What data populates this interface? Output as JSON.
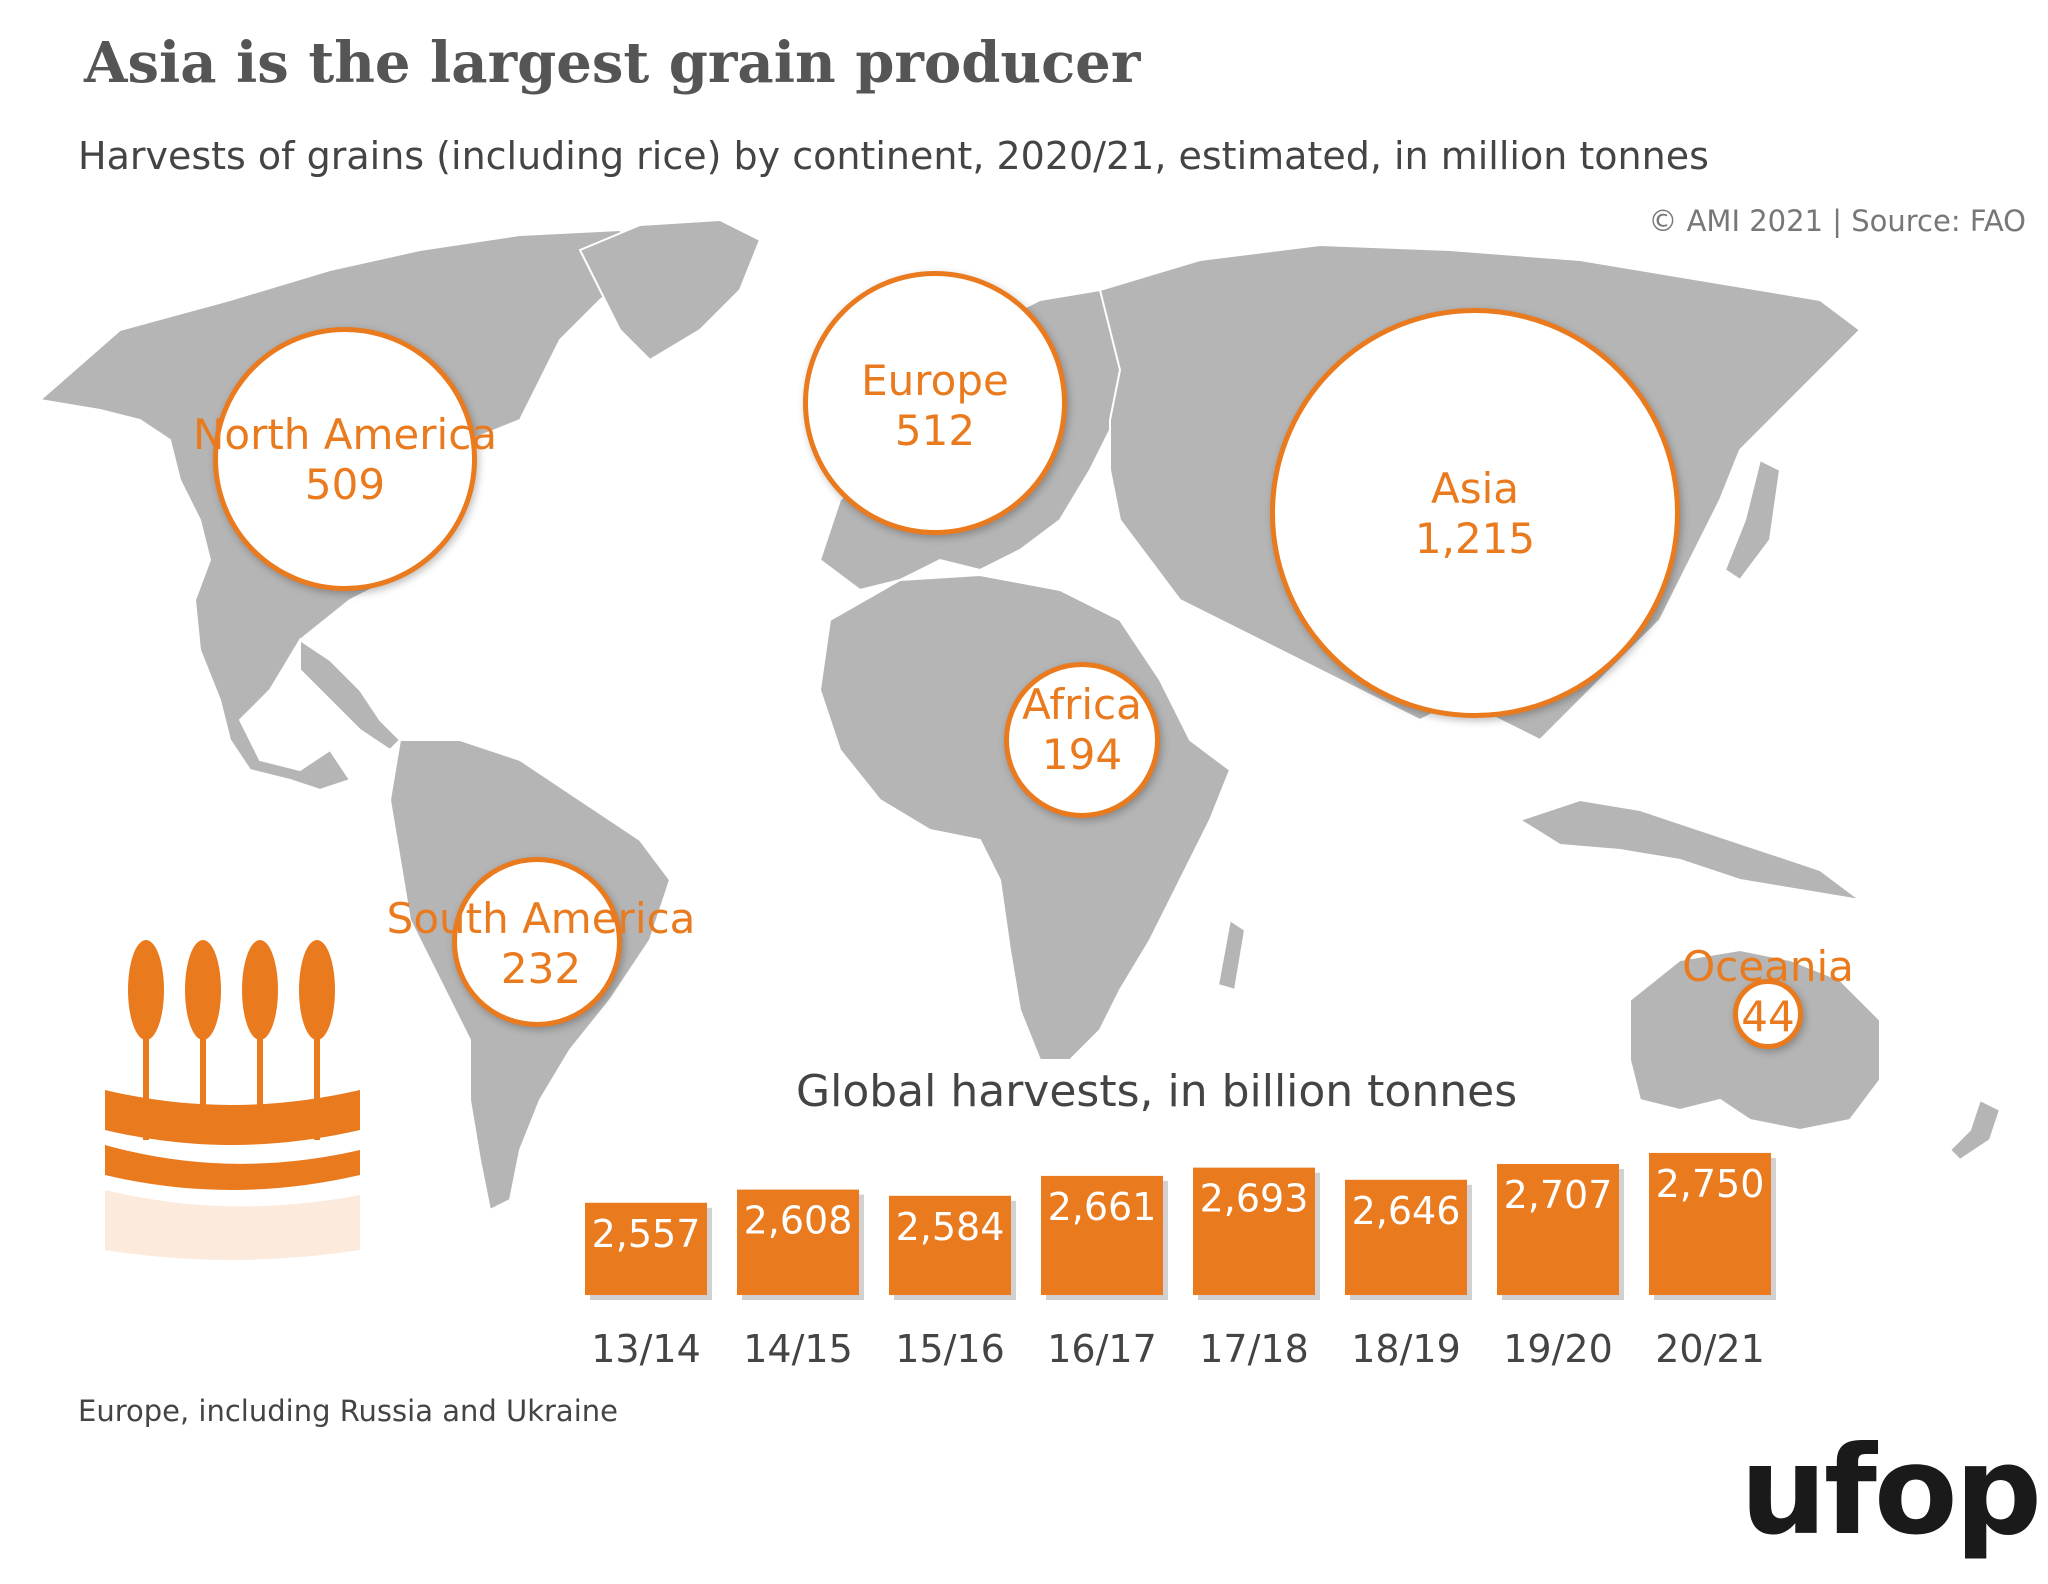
{
  "title": "Asia is the largest grain producer",
  "subtitle": "Harvests of grains (including rice) by continent, 2020/21, estimated, in million tonnes",
  "credit": "© AMI 2021 | Source: FAO",
  "footnote": "Europe, including Russia and Ukraine",
  "logo_text": "ufop",
  "colors": {
    "accent": "#ea7a1e",
    "land": "#b5b5b5",
    "text": "#444444"
  },
  "icons": [
    "wheat-icon",
    "ufop-logo"
  ],
  "chart_data": [
    {
      "type": "bubble-map",
      "title": "Harvests of grains (including rice) by continent, 2020/21, estimated, in million tonnes",
      "unit": "million tonnes",
      "regions": [
        {
          "name": "North America",
          "display": "509",
          "value": 509
        },
        {
          "name": "Europe",
          "display": "512",
          "value": 512
        },
        {
          "name": "Asia",
          "display": "1,215",
          "value": 1215
        },
        {
          "name": "Africa",
          "display": "194",
          "value": 194
        },
        {
          "name": "South America",
          "display": "232",
          "value": 232
        },
        {
          "name": "Oceania",
          "display": "44",
          "value": 44
        }
      ]
    },
    {
      "type": "bar",
      "title": "Global harvests, in billion tonnes",
      "categories": [
        "13/14",
        "14/15",
        "15/16",
        "16/17",
        "17/18",
        "18/19",
        "19/20",
        "20/21"
      ],
      "values": [
        2557,
        2608,
        2584,
        2661,
        2693,
        2646,
        2707,
        2750
      ],
      "labels": [
        "2,557",
        "2,608",
        "2,584",
        "2,661",
        "2,693",
        "2,646",
        "2,707",
        "2,750"
      ],
      "ylim": [
        2200,
        2800
      ]
    }
  ]
}
